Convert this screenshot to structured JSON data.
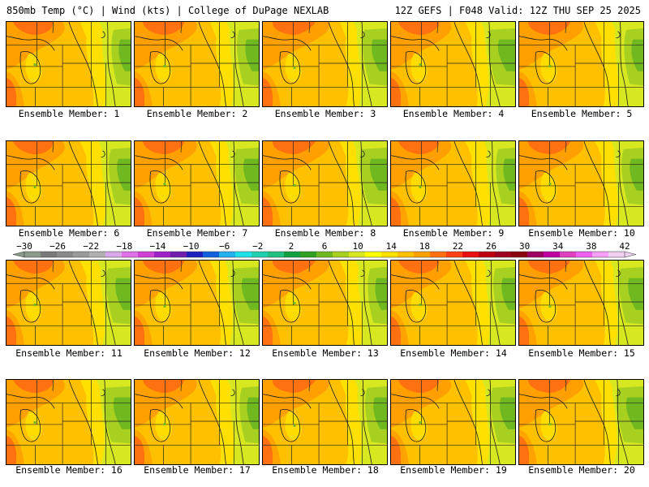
{
  "header": {
    "left_title": "850mb Temp (°C) | Wind (kts) | College of DuPage NEXLAB",
    "right_title": "12Z GEFS | F048 Valid: 12Z THU SEP 25 2025"
  },
  "panels": [
    {
      "label": "Ensemble Member: 1"
    },
    {
      "label": "Ensemble Member: 2"
    },
    {
      "label": "Ensemble Member: 3"
    },
    {
      "label": "Ensemble Member: 4"
    },
    {
      "label": "Ensemble Member: 5"
    },
    {
      "label": "Ensemble Member: 6"
    },
    {
      "label": "Ensemble Member: 7"
    },
    {
      "label": "Ensemble Member: 8"
    },
    {
      "label": "Ensemble Member: 9"
    },
    {
      "label": "Ensemble Member: 10"
    },
    {
      "label": "Ensemble Member: 11"
    },
    {
      "label": "Ensemble Member: 12"
    },
    {
      "label": "Ensemble Member: 13"
    },
    {
      "label": "Ensemble Member: 14"
    },
    {
      "label": "Ensemble Member: 15"
    },
    {
      "label": "Ensemble Member: 16"
    },
    {
      "label": "Ensemble Member: 17"
    },
    {
      "label": "Ensemble Member: 18"
    },
    {
      "label": "Ensemble Member: 19"
    },
    {
      "label": "Ensemble Member: 20"
    }
  ],
  "colorbar": {
    "ticks": [
      "−30",
      "−26",
      "−22",
      "−18",
      "−14",
      "−10",
      "−6",
      "−2",
      "2",
      "6",
      "10",
      "14",
      "18",
      "22",
      "26",
      "30",
      "34",
      "38",
      "42"
    ],
    "colors": [
      "#8c9a8c",
      "#7a7a7a",
      "#8a8a8a",
      "#9a9a9a",
      "#b0b0b0",
      "#d8a8e8",
      "#e070e8",
      "#d040d8",
      "#a020c8",
      "#7020b0",
      "#2020c0",
      "#1060e0",
      "#20b0f0",
      "#20e0e8",
      "#20d0b0",
      "#20c080",
      "#10a040",
      "#30a020",
      "#70b820",
      "#a8d020",
      "#d8e820",
      "#ffff00",
      "#ffe000",
      "#ffc000",
      "#ffa000",
      "#ff7010",
      "#ff4010",
      "#e81010",
      "#c00010",
      "#a00020",
      "#8c0010",
      "#a00060",
      "#c000a0",
      "#e040c0",
      "#f060f0",
      "#f8a0f8",
      "#f0d0f0"
    ]
  }
}
